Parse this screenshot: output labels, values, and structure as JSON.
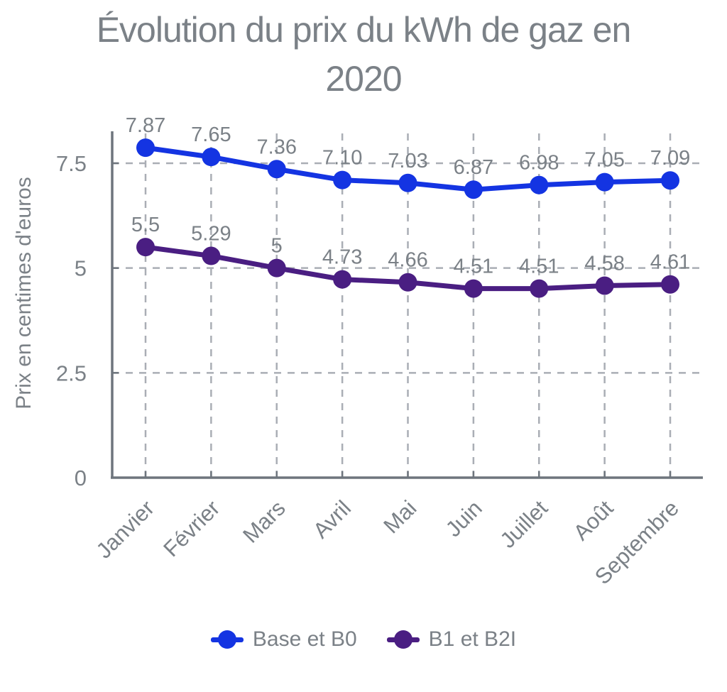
{
  "header": {
    "title_line1": "Évolution du prix du kWh de gaz en",
    "title_line2": "2020"
  },
  "chart_data": {
    "type": "line",
    "title": "Évolution du prix du kWh de gaz en 2020",
    "xlabel": "",
    "ylabel": "Prix en centimes d'euros",
    "categories": [
      "Janvier",
      "Février",
      "Mars",
      "Avril",
      "Mai",
      "Juin",
      "Juillet",
      "Août",
      "Septembre"
    ],
    "series": [
      {
        "name": "Base et B0",
        "color": "#1434e2",
        "values": [
          7.87,
          7.65,
          7.36,
          7.1,
          7.03,
          6.87,
          6.98,
          7.05,
          7.09
        ],
        "labels": [
          "7.87",
          "7.65",
          "7.36",
          "7.10",
          "7.03",
          "6.87",
          "6.98",
          "7.05",
          "7.09"
        ]
      },
      {
        "name": "B1 et B2I",
        "color": "#4a1e82",
        "values": [
          5.5,
          5.29,
          5,
          4.73,
          4.66,
          4.51,
          4.51,
          4.58,
          4.61
        ],
        "labels": [
          "5.5",
          "5.29",
          "5",
          "4.73",
          "4.66",
          "4.51",
          "4.51",
          "4.58",
          "4.61"
        ]
      }
    ],
    "y_ticks": [
      0,
      2.5,
      5,
      7.5
    ],
    "y_tick_labels": [
      "0",
      "2.5",
      "5",
      "7.5"
    ],
    "ylim": [
      0,
      7.5
    ],
    "grid": "dashed",
    "legend_position": "bottom"
  },
  "colors": {
    "text": "#7b8187",
    "axis": "#6e757d",
    "grid": "#aaaeb5",
    "background": "#ffffff"
  }
}
